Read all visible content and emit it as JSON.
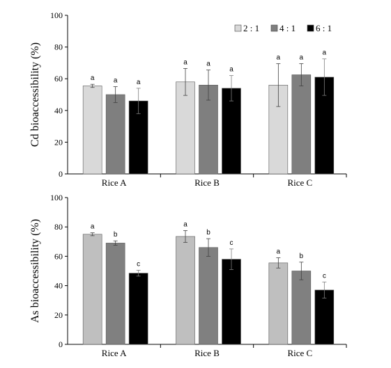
{
  "legend": [
    {
      "label": "2 : 1",
      "color": "#d9d9d9"
    },
    {
      "label": "4 : 1",
      "color": "#7f7f7f"
    },
    {
      "label": "6 : 1",
      "color": "#000000"
    }
  ],
  "chart_data": [
    {
      "type": "bar",
      "ylabel": "Cd bioaccessibility (%)",
      "xlabel": "",
      "ylim": [
        0,
        100
      ],
      "yticks": [
        "0",
        "20",
        "40",
        "60",
        "80",
        "100"
      ],
      "categories": [
        "Rice A",
        "Rice B",
        "Rice C"
      ],
      "colors": [
        "#d9d9d9",
        "#7f7f7f",
        "#000000"
      ],
      "legend_position": "top-right",
      "series": [
        {
          "name": "2 : 1",
          "values": [
            55.5,
            58,
            56
          ],
          "errors": [
            1,
            8.5,
            13.5
          ],
          "labels": [
            "a",
            "a",
            "a"
          ]
        },
        {
          "name": "4 : 1",
          "values": [
            50,
            56,
            62.5
          ],
          "errors": [
            5,
            9.5,
            7
          ],
          "labels": [
            "a",
            "a",
            "a"
          ]
        },
        {
          "name": "6 : 1",
          "values": [
            46,
            54,
            61
          ],
          "errors": [
            8,
            8,
            11.5
          ],
          "labels": [
            "a",
            "a",
            "a"
          ]
        }
      ]
    },
    {
      "type": "bar",
      "ylabel": "As bioaccessibility (%)",
      "xlabel": "",
      "ylim": [
        0,
        100
      ],
      "yticks": [
        "0",
        "20",
        "40",
        "60",
        "80",
        "100"
      ],
      "categories": [
        "Rice A",
        "Rice B",
        "Rice C"
      ],
      "colors": [
        "#bfbfbf",
        "#808080",
        "#000000"
      ],
      "series": [
        {
          "name": "2 : 1",
          "values": [
            75,
            73.5,
            55.5
          ],
          "errors": [
            1,
            4,
            3.5
          ],
          "labels": [
            "a",
            "a",
            "a"
          ]
        },
        {
          "name": "4 : 1",
          "values": [
            69,
            66,
            50
          ],
          "errors": [
            1.5,
            6,
            6
          ],
          "labels": [
            "b",
            "b",
            "b"
          ]
        },
        {
          "name": "6 : 1",
          "values": [
            48.5,
            58,
            37
          ],
          "errors": [
            2,
            7,
            5.5
          ],
          "labels": [
            "c",
            "c",
            "c"
          ]
        }
      ]
    }
  ]
}
